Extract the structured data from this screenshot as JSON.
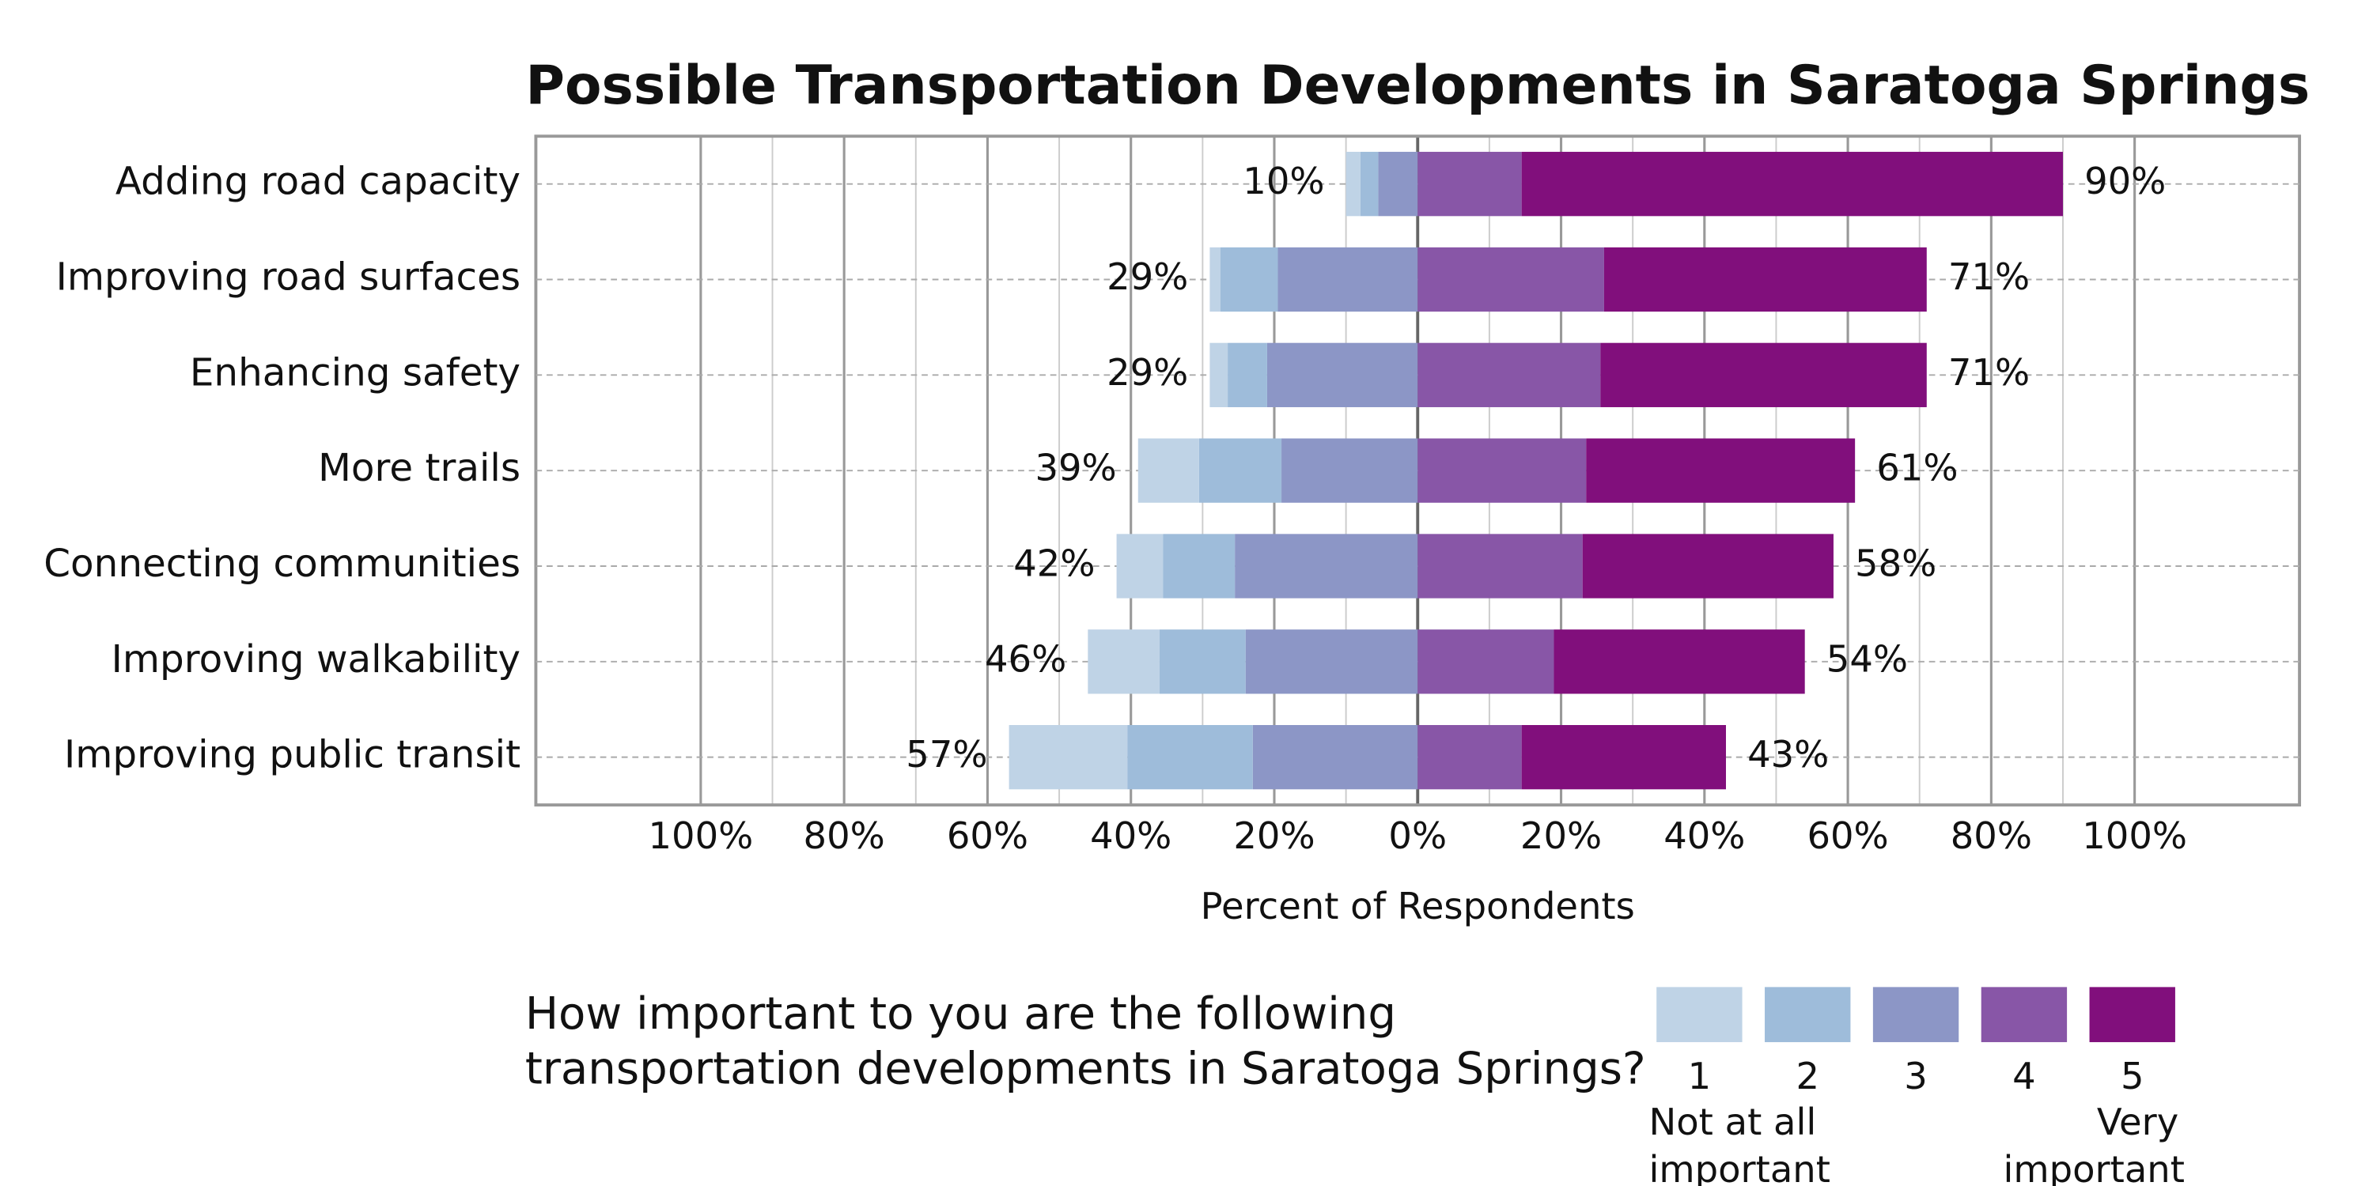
{
  "chart_data": {
    "type": "diverging_bar",
    "title": "Possible Transportation Developments in Saratoga Springs",
    "x_label": "Percent of Respondents",
    "categories": [
      "Adding road capacity",
      "Improving road surfaces",
      "Enhancing safety",
      "More trails",
      "Connecting communities",
      "Improving walkability",
      "Improving public transit"
    ],
    "series": [
      {
        "name": "1",
        "color": "#bfd3e6",
        "side": "left",
        "values": [
          2,
          1.5,
          2.5,
          8.5,
          6.5,
          10,
          16.5
        ]
      },
      {
        "name": "2",
        "color": "#9ebcda",
        "side": "left",
        "values": [
          2.5,
          8,
          5.5,
          11.5,
          10,
          12,
          17.5
        ]
      },
      {
        "name": "3",
        "color": "#8c96c6",
        "side": "left",
        "values": [
          5.5,
          19.5,
          21,
          19,
          25.5,
          24,
          23
        ]
      },
      {
        "name": "4",
        "color": "#8856a7",
        "side": "right",
        "values": [
          14.5,
          26,
          25.5,
          23.5,
          23,
          19,
          14.5
        ]
      },
      {
        "name": "5",
        "color": "#810f7c",
        "side": "right",
        "values": [
          75.5,
          45,
          45.5,
          37.5,
          35,
          35,
          28.5
        ]
      }
    ],
    "left_totals": [
      10,
      29,
      29,
      39,
      42,
      46,
      57
    ],
    "left_total_labels": [
      "10%",
      "29%",
      "29%",
      "39%",
      "42%",
      "46%",
      "57%"
    ],
    "right_totals": [
      90,
      71,
      71,
      61,
      58,
      54,
      43
    ],
    "right_total_labels": [
      "90%",
      "71%",
      "71%",
      "61%",
      "58%",
      "54%",
      "43%"
    ],
    "xlim": [
      -123,
      123
    ],
    "xticks": [
      {
        "value": -100,
        "label": "100%"
      },
      {
        "value": -80,
        "label": "80%"
      },
      {
        "value": -60,
        "label": "60%"
      },
      {
        "value": -40,
        "label": "40%"
      },
      {
        "value": -20,
        "label": "20%"
      },
      {
        "value": 0,
        "label": "0%"
      },
      {
        "value": 20,
        "label": "20%"
      },
      {
        "value": 40,
        "label": "40%"
      },
      {
        "value": 60,
        "label": "60%"
      },
      {
        "value": 80,
        "label": "80%"
      },
      {
        "value": 100,
        "label": "100%"
      }
    ],
    "minor_xticks": [
      -90,
      -70,
      -50,
      -30,
      -10,
      10,
      30,
      50,
      70,
      90
    ],
    "grid": true,
    "legend_question": [
      "How important to you are the following",
      "transportation developments in Saratoga Springs?"
    ],
    "legend_low": [
      "Not at all",
      "important"
    ],
    "legend_high": [
      "Very",
      "important"
    ]
  }
}
